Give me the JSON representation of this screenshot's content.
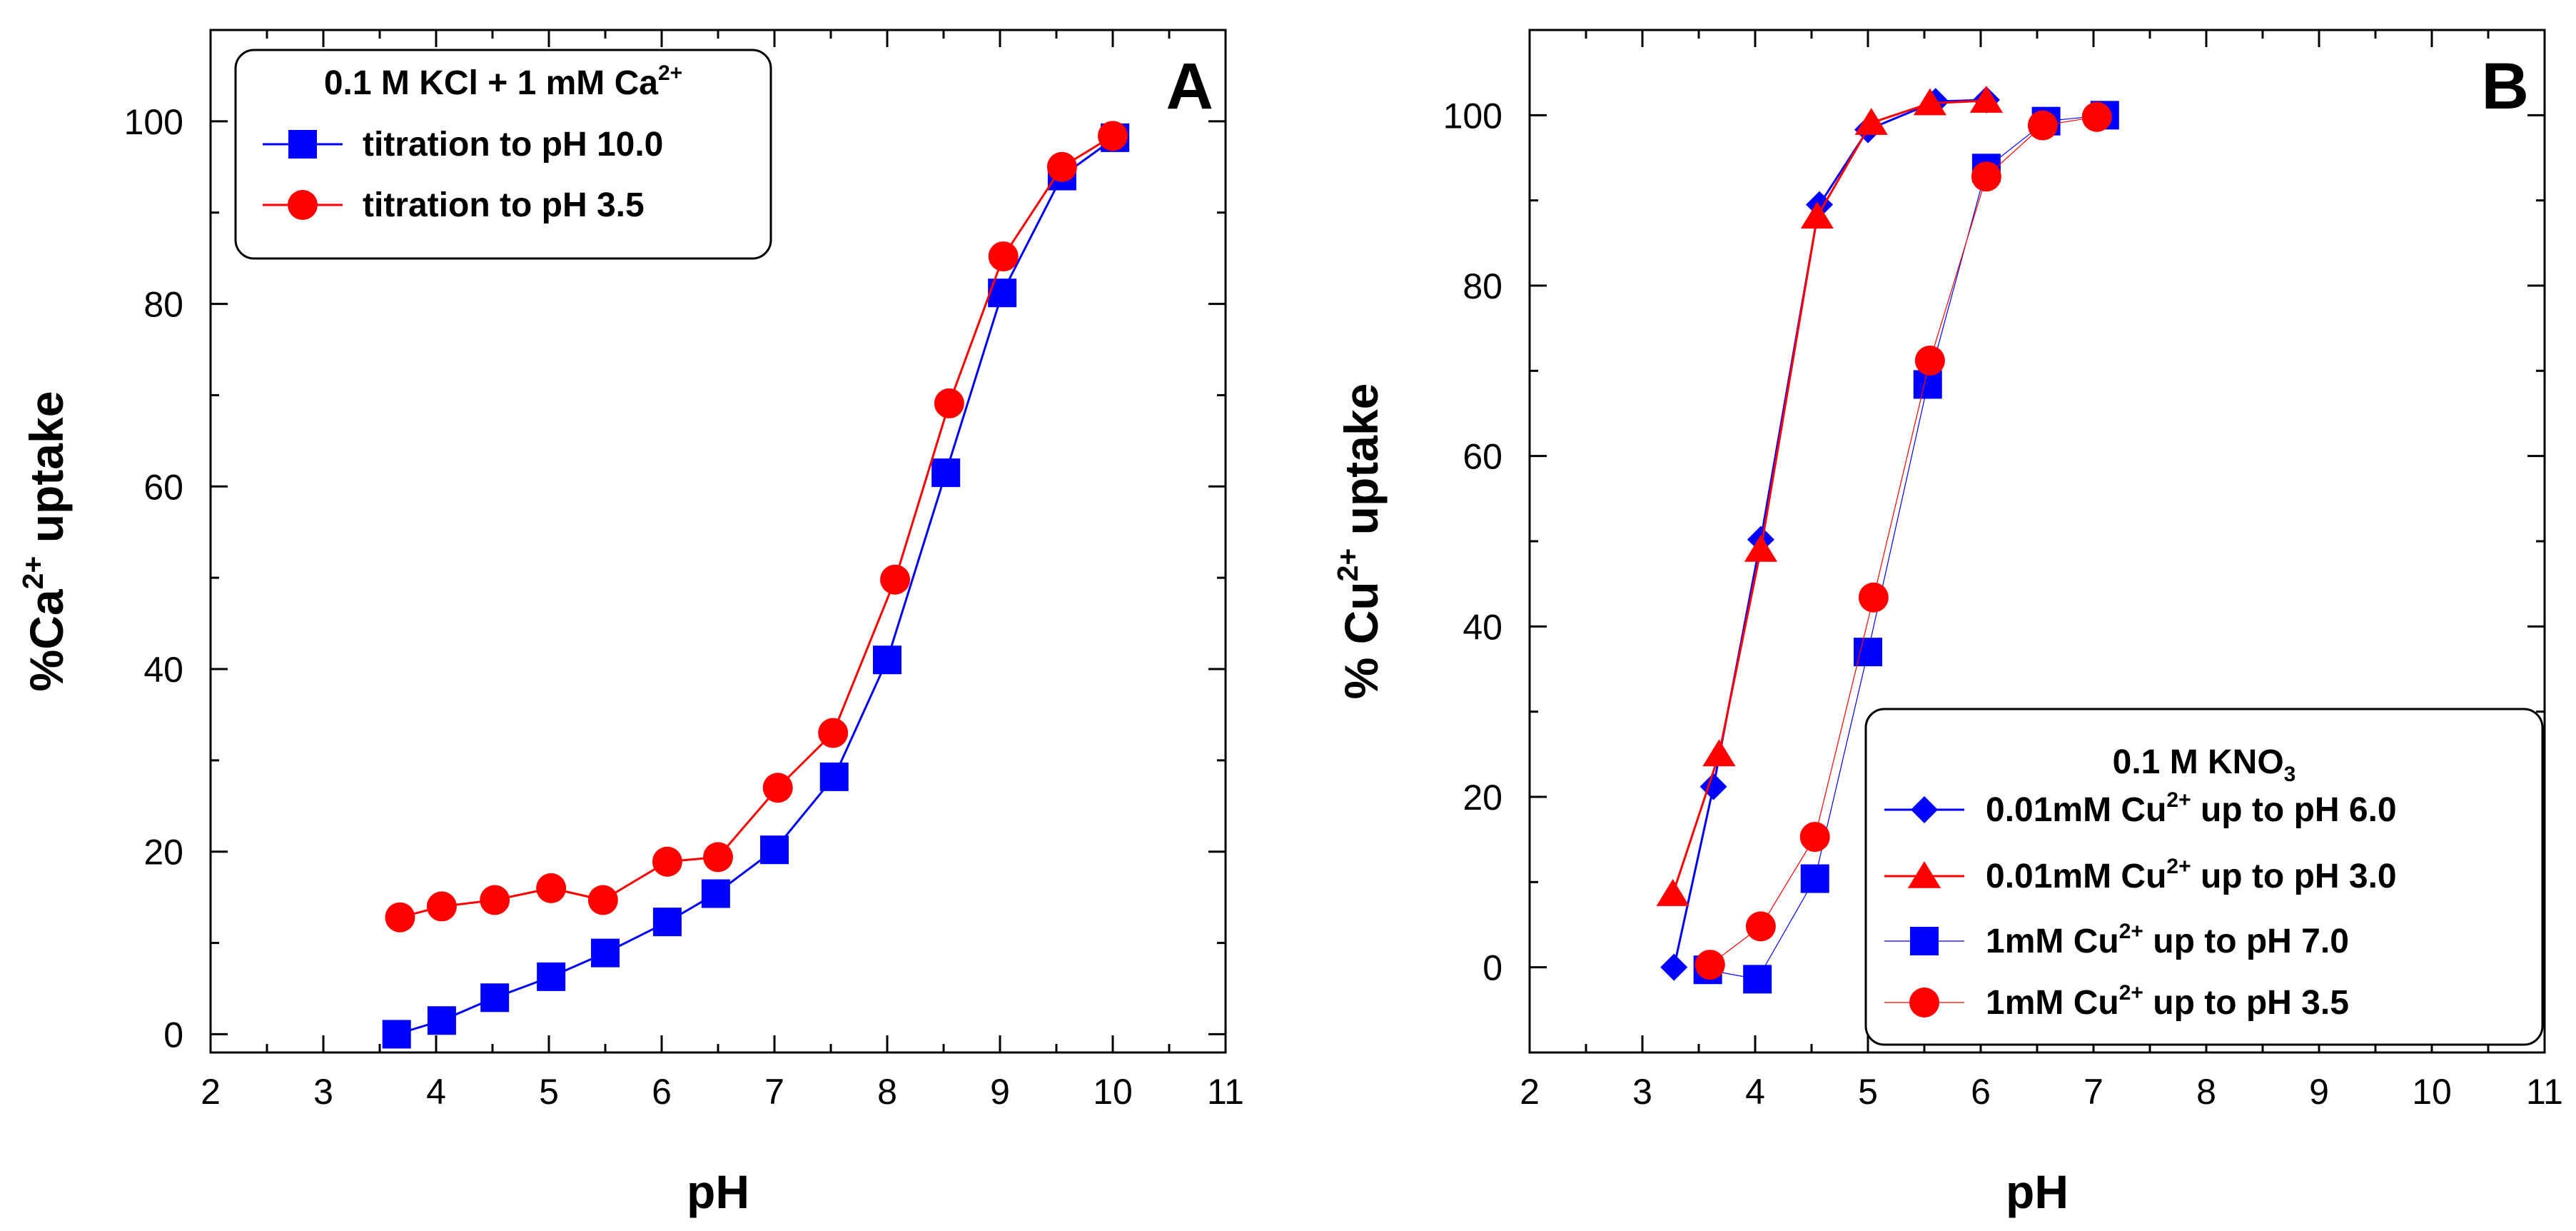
{
  "chart_data": [
    {
      "type": "scatter",
      "panel_label": "A",
      "xlabel": "pH",
      "ylabel": {
        "pre": "%Ca",
        "sup": "2+",
        "post": " uptake"
      },
      "xlim": [
        2,
        11
      ],
      "ylim": [
        -2,
        110
      ],
      "xticks": [
        2,
        3,
        4,
        5,
        6,
        7,
        8,
        9,
        10,
        11
      ],
      "yticks": [
        0,
        20,
        40,
        60,
        80,
        100
      ],
      "legend": {
        "title": {
          "pre": "0.1 M KCl + 1 mM Ca",
          "sup": "2+",
          "post": ""
        },
        "position": "top-left"
      },
      "series": [
        {
          "name": "titration to pH 10.0",
          "label": {
            "pre": "titration to pH 10.0",
            "sup": "",
            "post": ""
          },
          "color": "#0000ff",
          "marker": "square",
          "line_width": 3,
          "x": [
            3.65,
            4.05,
            4.52,
            5.02,
            5.5,
            6.05,
            6.48,
            7.0,
            7.53,
            8.0,
            8.52,
            9.02,
            9.55,
            10.02
          ],
          "y": [
            0.0,
            1.5,
            4.0,
            6.3,
            8.9,
            12.3,
            15.4,
            20.2,
            28.2,
            41.0,
            61.5,
            81.2,
            94.0,
            98.2
          ]
        },
        {
          "name": "titration to pH 3.5",
          "label": {
            "pre": "titration to pH 3.5",
            "sup": "",
            "post": ""
          },
          "color": "#ff0000",
          "marker": "circle",
          "line_width": 3,
          "x": [
            3.68,
            4.05,
            4.52,
            5.02,
            5.48,
            6.05,
            6.5,
            7.03,
            7.52,
            8.07,
            8.55,
            9.03,
            9.55,
            10.0
          ],
          "y": [
            12.8,
            14.0,
            14.7,
            16.0,
            14.7,
            18.9,
            19.4,
            27.0,
            33.0,
            49.8,
            69.1,
            85.2,
            95.0,
            98.4
          ]
        }
      ]
    },
    {
      "type": "scatter",
      "panel_label": "B",
      "xlabel": "pH",
      "ylabel": {
        "pre": "% Cu",
        "sup": "2+",
        "post": " uptake"
      },
      "xlim": [
        2,
        11
      ],
      "ylim": [
        -10,
        110
      ],
      "xticks": [
        2,
        3,
        4,
        5,
        6,
        7,
        8,
        9,
        10,
        11
      ],
      "yticks": [
        0,
        20,
        40,
        60,
        80,
        100
      ],
      "legend": {
        "title": {
          "pre": "0.1 M KNO",
          "sub": "3"
        },
        "position": "bottom-right"
      },
      "series": [
        {
          "name": "0.01mM Cu2+ up to pH 6.0",
          "label": {
            "pre": "0.01mM Cu",
            "sup": "2+",
            "post": " up to pH 6.0"
          },
          "color": "#0000ff",
          "marker": "diamond",
          "line_width": 3,
          "x": [
            3.28,
            3.63,
            4.05,
            4.57,
            5.0,
            5.6,
            6.05
          ],
          "y": [
            0.0,
            21.2,
            50.2,
            89.5,
            98.3,
            101.6,
            101.8
          ]
        },
        {
          "name": "0.01mM Cu2+ up to pH 3.0",
          "label": {
            "pre": "0.01mM Cu",
            "sup": "2+",
            "post": " up to pH 3.0"
          },
          "color": "#ff0000",
          "marker": "triangle",
          "line_width": 3,
          "x": [
            3.27,
            3.68,
            4.05,
            4.55,
            5.03,
            5.55,
            6.05
          ],
          "y": [
            8.6,
            25.0,
            49.0,
            88.1,
            99.1,
            101.4,
            101.7
          ]
        },
        {
          "name": "1mM Cu2+ up to pH 7.0",
          "label": {
            "pre": "1mM Cu",
            "sup": "2+",
            "post": " up to pH 7.0"
          },
          "color": "#0000ff",
          "marker": "square",
          "line_width": 1.2,
          "x": [
            3.58,
            4.02,
            4.53,
            5.0,
            5.53,
            6.05,
            6.58,
            7.1
          ],
          "y": [
            -0.3,
            -1.4,
            10.4,
            37.0,
            68.4,
            93.8,
            99.3,
            100.0
          ]
        },
        {
          "name": "1mM Cu2+ up to pH 3.5",
          "label": {
            "pre": "1mM Cu",
            "sup": "2+",
            "post": " up to pH 3.5"
          },
          "color": "#ff0000",
          "marker": "circle",
          "line_width": 1.2,
          "x": [
            3.6,
            4.05,
            4.53,
            5.05,
            5.55,
            6.05,
            6.55,
            7.03
          ],
          "y": [
            0.3,
            4.8,
            15.3,
            43.4,
            71.2,
            92.8,
            98.8,
            99.8
          ]
        }
      ]
    }
  ]
}
